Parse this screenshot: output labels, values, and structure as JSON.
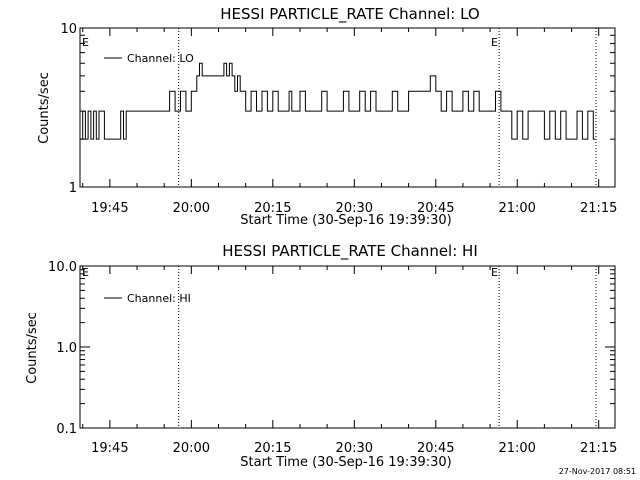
{
  "chart_data": [
    {
      "type": "line",
      "title": "HESSI PARTICLE_RATE Channel: LO",
      "xlabel": "Start Time (30-Sep-16 19:39:30)",
      "ylabel": "Counts/sec",
      "yscale": "log",
      "ylim": [
        1,
        10
      ],
      "yticks": [
        "1",
        "10"
      ],
      "xlim": [
        "19:39:30",
        "21:18:00"
      ],
      "xticks": [
        "19:45",
        "20:00",
        "20:15",
        "20:30",
        "20:45",
        "21:00",
        "21:15"
      ],
      "legend": "top-left",
      "series": [
        {
          "name": "Channel: LO",
          "x": [
            "19:39:30",
            "19:40:00",
            "19:40:30",
            "19:41:00",
            "19:41:30",
            "19:42:00",
            "19:42:30",
            "19:43:00",
            "19:44:00",
            "19:47:00",
            "19:47:30",
            "19:48:00",
            "19:50:00",
            "19:52:00",
            "19:54:00",
            "19:55:00",
            "19:56:00",
            "19:57:00",
            "19:58:00",
            "19:59:00",
            "20:00:00",
            "20:01:00",
            "20:01:30",
            "20:02:00",
            "20:03:00",
            "20:04:00",
            "20:05:00",
            "20:06:00",
            "20:06:30",
            "20:07:00",
            "20:07:30",
            "20:08:00",
            "20:08:30",
            "20:09:00",
            "20:10:00",
            "20:11:00",
            "20:12:00",
            "20:13:00",
            "20:14:00",
            "20:15:00",
            "20:16:00",
            "20:17:00",
            "20:18:00",
            "20:18:30",
            "20:19:00",
            "20:20:00",
            "20:21:00",
            "20:22:00",
            "20:23:00",
            "20:24:00",
            "20:25:00",
            "20:26:00",
            "20:27:00",
            "20:28:00",
            "20:29:00",
            "20:30:00",
            "20:31:00",
            "20:32:00",
            "20:33:00",
            "20:34:00",
            "20:35:00",
            "20:36:00",
            "20:37:00",
            "20:38:00",
            "20:39:00",
            "20:40:00",
            "20:41:00",
            "20:42:00",
            "20:43:00",
            "20:44:00",
            "20:45:00",
            "20:46:00",
            "20:47:00",
            "20:48:00",
            "20:49:00",
            "20:50:00",
            "20:51:00",
            "20:52:00",
            "20:53:00",
            "20:54:00",
            "20:55:00",
            "20:56:00",
            "20:57:00",
            "20:58:00",
            "20:59:00",
            "21:00:00",
            "21:01:00",
            "21:02:00",
            "21:03:00",
            "21:04:00",
            "21:05:00",
            "21:06:00",
            "21:07:00",
            "21:08:00",
            "21:09:00",
            "21:10:00",
            "21:11:00",
            "21:12:00",
            "21:13:00",
            "21:14:00"
          ],
          "y": [
            2,
            3,
            2,
            3,
            2,
            3,
            2,
            3,
            2,
            3,
            2,
            3,
            3,
            3,
            3,
            3,
            4,
            3,
            4,
            3,
            4,
            5,
            6,
            5,
            5,
            5,
            5,
            6,
            5,
            6,
            5,
            4,
            5,
            4,
            3,
            4,
            3,
            4,
            3,
            4,
            3,
            3,
            4,
            3,
            3,
            4,
            3,
            3,
            3,
            4,
            3,
            3,
            3,
            4,
            3,
            3,
            4,
            3,
            4,
            3,
            3,
            3,
            4,
            3,
            3,
            4,
            4,
            4,
            4,
            5,
            4,
            3,
            4,
            3,
            3,
            4,
            3,
            4,
            3,
            3,
            3,
            4,
            3,
            3,
            2,
            3,
            2,
            3,
            3,
            3,
            2,
            3,
            2,
            3,
            2,
            2,
            3,
            2,
            3,
            2
          ]
        }
      ],
      "annotations": [
        "E",
        "E"
      ]
    },
    {
      "type": "line",
      "title": "HESSI PARTICLE_RATE Channel: HI",
      "xlabel": "Start Time (30-Sep-16 19:39:30)",
      "ylabel": "Counts/sec",
      "yscale": "log",
      "ylim": [
        0.1,
        10
      ],
      "yticks": [
        "0.1",
        "1.0",
        "10.0"
      ],
      "xlim": [
        "19:39:30",
        "21:18:00"
      ],
      "xticks": [
        "19:45",
        "20:00",
        "20:15",
        "20:30",
        "20:45",
        "21:00",
        "21:15"
      ],
      "legend": "top-left",
      "series": [
        {
          "name": "Channel: HI",
          "x": [],
          "y": []
        }
      ],
      "annotations": [
        "E",
        "E"
      ]
    }
  ],
  "timestamp": "27-Nov-2017 08:51"
}
